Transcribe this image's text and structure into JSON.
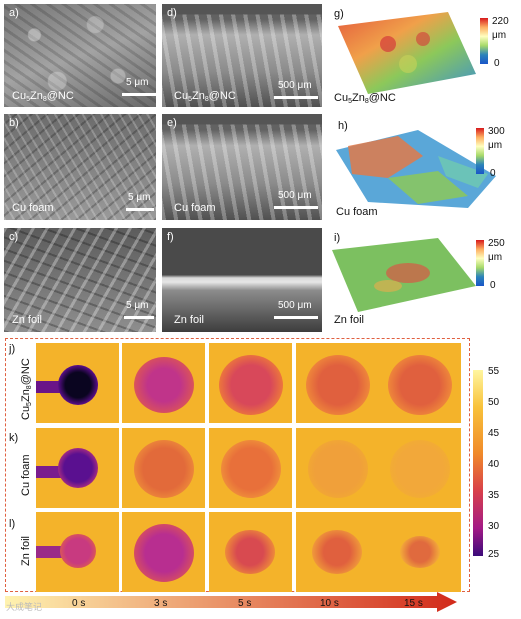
{
  "sem_panels": {
    "a": {
      "letter": "a)",
      "label": "Cu5Zn8@NC",
      "scale": "5 μm"
    },
    "b": {
      "letter": "b)",
      "label": "Cu foam",
      "scale": "5 μm"
    },
    "c": {
      "letter": "c)",
      "label": "Zn foil",
      "scale": "5 μm"
    },
    "d": {
      "letter": "d)",
      "label": "Cu5Zn8@NC",
      "scale": "500 μm"
    },
    "e": {
      "letter": "e)",
      "label": "Cu foam",
      "scale": "500 μm"
    },
    "f": {
      "letter": "f)",
      "label": "Zn foil",
      "scale": "500 μm"
    }
  },
  "topo_panels": {
    "g": {
      "letter": "g)",
      "label": "Cu5Zn8@NC",
      "max": "220",
      "unit": "μm",
      "min": "0"
    },
    "h": {
      "letter": "h)",
      "label": "Cu foam",
      "max": "300",
      "unit": "μm",
      "min": "0"
    },
    "i": {
      "letter": "i)",
      "label": "Zn foil",
      "max": "250",
      "unit": "μm",
      "min": "0"
    }
  },
  "thermal": {
    "rows": [
      {
        "letter": "j)",
        "label": "Cu5Zn8@NC"
      },
      {
        "letter": "k)",
        "label": "Cu foam"
      },
      {
        "letter": "l)",
        "label": "Zn foil"
      }
    ],
    "times": [
      "0 s",
      "3 s",
      "5 s",
      "10 s",
      "15 s"
    ],
    "colorbar_ticks": [
      "55",
      "50",
      "45",
      "40",
      "35",
      "30",
      "25"
    ]
  },
  "colors": {
    "frame": "#e06040",
    "arrow_start": "#fff3b0",
    "arrow_end": "#d22a1a"
  },
  "watermark": "大成笔记"
}
